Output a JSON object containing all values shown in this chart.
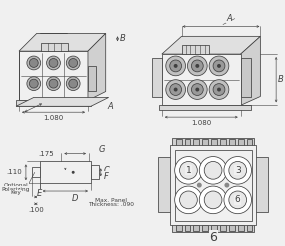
{
  "bg_color": "#f0f0f0",
  "line_color": "#404040",
  "dim_1080": "1.080",
  "dim_A": "A",
  "dim_B": "B",
  "dim_G": "G",
  "dim_C": "C",
  "dim_D": "D",
  "dim_E": "E",
  "dim_F": "F",
  "dim_175": ".175",
  "dim_110": ".110",
  "dim_100": ".100",
  "label_opt": "Optional",
  "label_pol": "Polarizing",
  "label_key": "Key",
  "label_max": "Max. Panel",
  "label_thick": "Thickness: .090",
  "label_6": "6",
  "fs": 5.0,
  "fs_label": 4.2
}
